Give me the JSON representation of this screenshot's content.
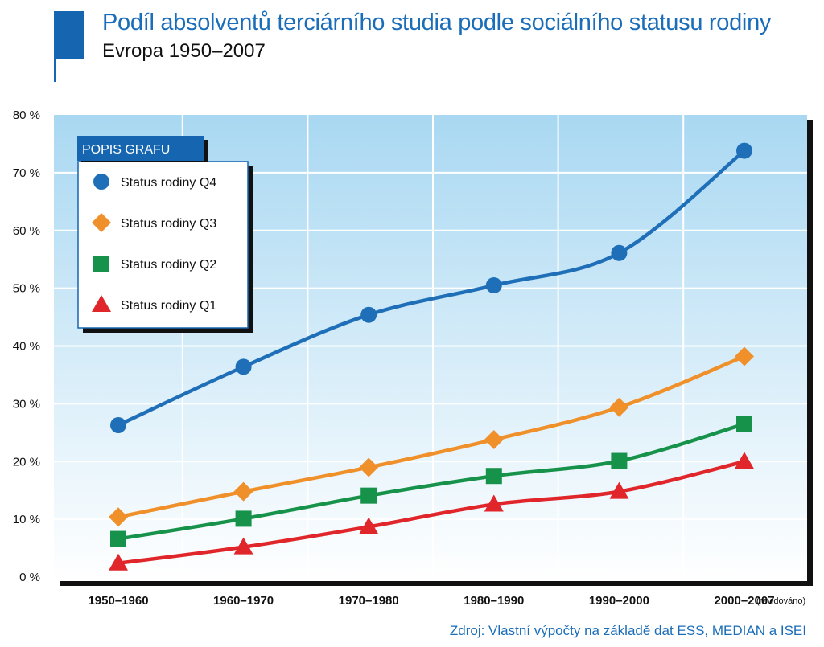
{
  "header": {
    "title": "Podíl absolventů terciárního studia podle sociálního statusu rodiny",
    "subtitle": "Evropa 1950–2007"
  },
  "source": "Zdroj: Vlastní výpočty na základě dat ESS, MEDIAN a ISEI",
  "colors": {
    "accent": "#1565b0",
    "q4": "#1f6fb8",
    "q3": "#f0902a",
    "q2": "#17924a",
    "q1": "#e0262a"
  },
  "chart_data": {
    "type": "line",
    "title": "Podíl absolventů terciárního studia podle sociálního statusu rodiny",
    "subtitle": "Evropa 1950–2007",
    "categories": [
      "1950–1960",
      "1960–1970",
      "1970–1980",
      "1980–1990",
      "1990–2000",
      "2000–2007"
    ],
    "category_note": "(revidováno)",
    "ylim": [
      0,
      80
    ],
    "yticks": [
      "0 %",
      "10 %",
      "20 %",
      "30 %",
      "40 %",
      "50 %",
      "60 %",
      "70 %",
      "80 %"
    ],
    "ytick_values": [
      0,
      10,
      20,
      30,
      40,
      50,
      60,
      70,
      80
    ],
    "grid": true,
    "legend_title": "POPIS GRAFU",
    "legend_position": "top-left",
    "series": [
      {
        "name": "Status rodiny Q4",
        "marker": "circle",
        "color": "#1f6fb8",
        "values": [
          26.3,
          36.4,
          45.4,
          50.5,
          56.1,
          73.8
        ]
      },
      {
        "name": "Status rodiny Q3",
        "marker": "diamond",
        "color": "#f0902a",
        "values": [
          10.4,
          14.8,
          19.0,
          23.8,
          29.4,
          38.2
        ]
      },
      {
        "name": "Status rodiny Q2",
        "marker": "square",
        "color": "#17924a",
        "values": [
          6.6,
          10.1,
          14.1,
          17.5,
          20.1,
          26.5
        ]
      },
      {
        "name": "Status rodiny Q1",
        "marker": "triangle",
        "color": "#e0262a",
        "values": [
          2.4,
          5.2,
          8.7,
          12.6,
          14.8,
          20.0
        ]
      }
    ]
  }
}
